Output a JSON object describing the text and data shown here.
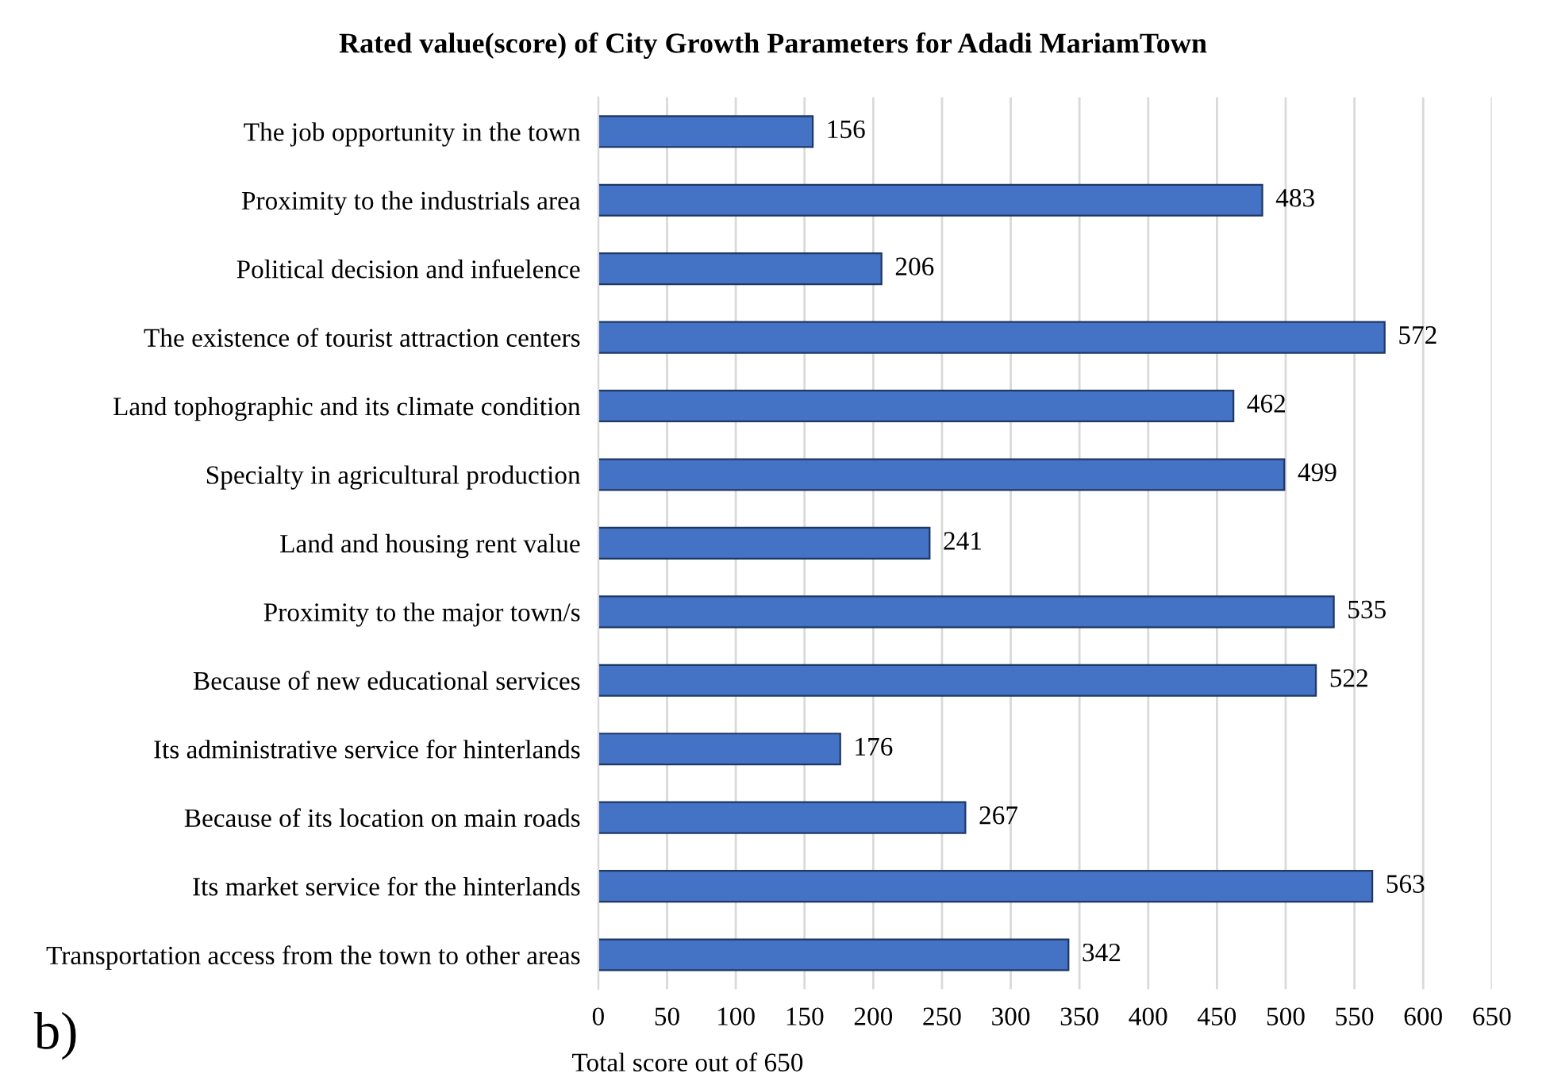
{
  "chart_data": {
    "type": "bar",
    "orientation": "horizontal",
    "title": "Rated value(score) of City Growth Parameters for Adadi MariamTown",
    "xlabel": "Total score out of 650",
    "categories": [
      "The job opportunity in the town",
      "Proximity to the industrials area",
      "Political decision and infuelence",
      "The existence of tourist attraction centers",
      "Land tophographic and its climate condition",
      "Specialty in agricultural production",
      "Land and housing rent value",
      "Proximity to the major town/s",
      "Because of new educational services",
      "Its administrative service for hinterlands",
      "Because of its location on main roads",
      "Its market service for the hinterlands",
      "Transportation access from the town to other areas"
    ],
    "values": [
      156,
      483,
      206,
      572,
      462,
      499,
      241,
      535,
      522,
      176,
      267,
      563,
      342
    ],
    "color": "#4472c4",
    "xlim": [
      0,
      650
    ],
    "xticks": [
      0,
      50,
      100,
      150,
      200,
      250,
      300,
      350,
      400,
      450,
      500,
      550,
      600,
      650
    ],
    "grid": "x",
    "data_labels": true,
    "legend": false,
    "annotations": [
      "b)"
    ]
  }
}
